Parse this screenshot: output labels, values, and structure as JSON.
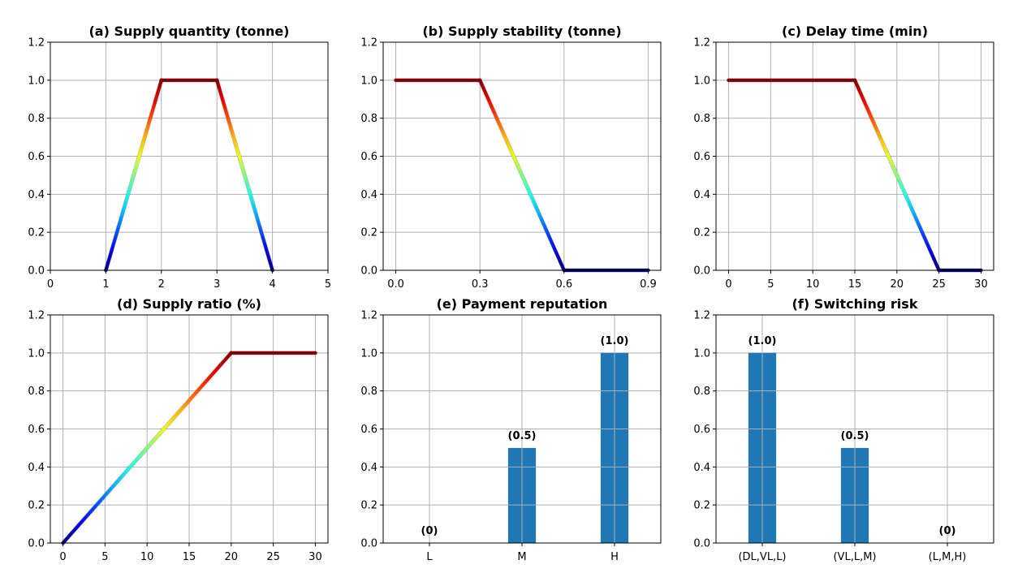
{
  "chart_data": [
    {
      "type": "line",
      "title": "(a) Supply quantity (tonne)",
      "x": [
        1,
        2,
        3,
        4
      ],
      "y": [
        0,
        1,
        1,
        0
      ],
      "xlim": [
        0,
        5
      ],
      "ylim": [
        0,
        1.2
      ],
      "xticks": [
        0,
        1,
        2,
        3,
        4,
        5
      ],
      "xtick_labels": [
        "0",
        "1",
        "2",
        "3",
        "4",
        "5"
      ],
      "yticks": [
        0,
        0.2,
        0.4,
        0.6,
        0.8,
        1.0,
        1.2
      ],
      "ytick_labels": [
        "0.0",
        "0.2",
        "0.4",
        "0.6",
        "0.8",
        "1.0",
        "1.2"
      ],
      "grid": true,
      "colormap": "jet"
    },
    {
      "type": "line",
      "title": "(b) Supply stability (tonne)",
      "x": [
        0,
        0.3,
        0.6,
        0.9
      ],
      "y": [
        1,
        1,
        0,
        0
      ],
      "xlim": [
        -0.045,
        0.945
      ],
      "ylim": [
        0,
        1.2
      ],
      "xticks": [
        0,
        0.3,
        0.6,
        0.9
      ],
      "xtick_labels": [
        "0.0",
        "0.3",
        "0.6",
        "0.9"
      ],
      "yticks": [
        0,
        0.2,
        0.4,
        0.6,
        0.8,
        1.0,
        1.2
      ],
      "ytick_labels": [
        "0.0",
        "0.2",
        "0.4",
        "0.6",
        "0.8",
        "1.0",
        "1.2"
      ],
      "grid": true,
      "colormap": "jet"
    },
    {
      "type": "line",
      "title": "(c) Delay time (min)",
      "x": [
        0,
        15,
        25,
        30
      ],
      "y": [
        1,
        1,
        0,
        0
      ],
      "xlim": [
        -1.5,
        31.5
      ],
      "ylim": [
        0,
        1.2
      ],
      "xticks": [
        0,
        5,
        10,
        15,
        20,
        25,
        30
      ],
      "xtick_labels": [
        "0",
        "5",
        "10",
        "15",
        "20",
        "25",
        "30"
      ],
      "yticks": [
        0,
        0.2,
        0.4,
        0.6,
        0.8,
        1.0,
        1.2
      ],
      "ytick_labels": [
        "0.0",
        "0.2",
        "0.4",
        "0.6",
        "0.8",
        "1.0",
        "1.2"
      ],
      "grid": true,
      "colormap": "jet"
    },
    {
      "type": "line",
      "title": "(d) Supply ratio (%)",
      "x": [
        0,
        20,
        30
      ],
      "y": [
        0,
        1,
        1
      ],
      "xlim": [
        -1.5,
        31.5
      ],
      "ylim": [
        0,
        1.2
      ],
      "xticks": [
        0,
        5,
        10,
        15,
        20,
        25,
        30
      ],
      "xtick_labels": [
        "0",
        "5",
        "10",
        "15",
        "20",
        "25",
        "30"
      ],
      "yticks": [
        0,
        0.2,
        0.4,
        0.6,
        0.8,
        1.0,
        1.2
      ],
      "ytick_labels": [
        "0.0",
        "0.2",
        "0.4",
        "0.6",
        "0.8",
        "1.0",
        "1.2"
      ],
      "grid": true,
      "colormap": "jet"
    },
    {
      "type": "bar",
      "title": "(e) Payment reputation",
      "categories": [
        "L",
        "M",
        "H"
      ],
      "values": [
        0,
        0.5,
        1.0
      ],
      "data_labels": [
        "(0)",
        "(0.5)",
        "(1.0)"
      ],
      "ylim": [
        0,
        1.2
      ],
      "yticks": [
        0,
        0.2,
        0.4,
        0.6,
        0.8,
        1.0,
        1.2
      ],
      "ytick_labels": [
        "0.0",
        "0.2",
        "0.4",
        "0.6",
        "0.8",
        "1.0",
        "1.2"
      ],
      "grid": true,
      "bar_color": "#1f77b4"
    },
    {
      "type": "bar",
      "title": "(f) Switching risk",
      "categories": [
        "(DL,VL,L)",
        "(VL,L,M)",
        "(L,M,H)"
      ],
      "values": [
        1.0,
        0.5,
        0
      ],
      "data_labels": [
        "(1.0)",
        "(0.5)",
        "(0)"
      ],
      "ylim": [
        0,
        1.2
      ],
      "yticks": [
        0,
        0.2,
        0.4,
        0.6,
        0.8,
        1.0,
        1.2
      ],
      "ytick_labels": [
        "0.0",
        "0.2",
        "0.4",
        "0.6",
        "0.8",
        "1.0",
        "1.2"
      ],
      "grid": true,
      "bar_color": "#1f77b4"
    }
  ]
}
